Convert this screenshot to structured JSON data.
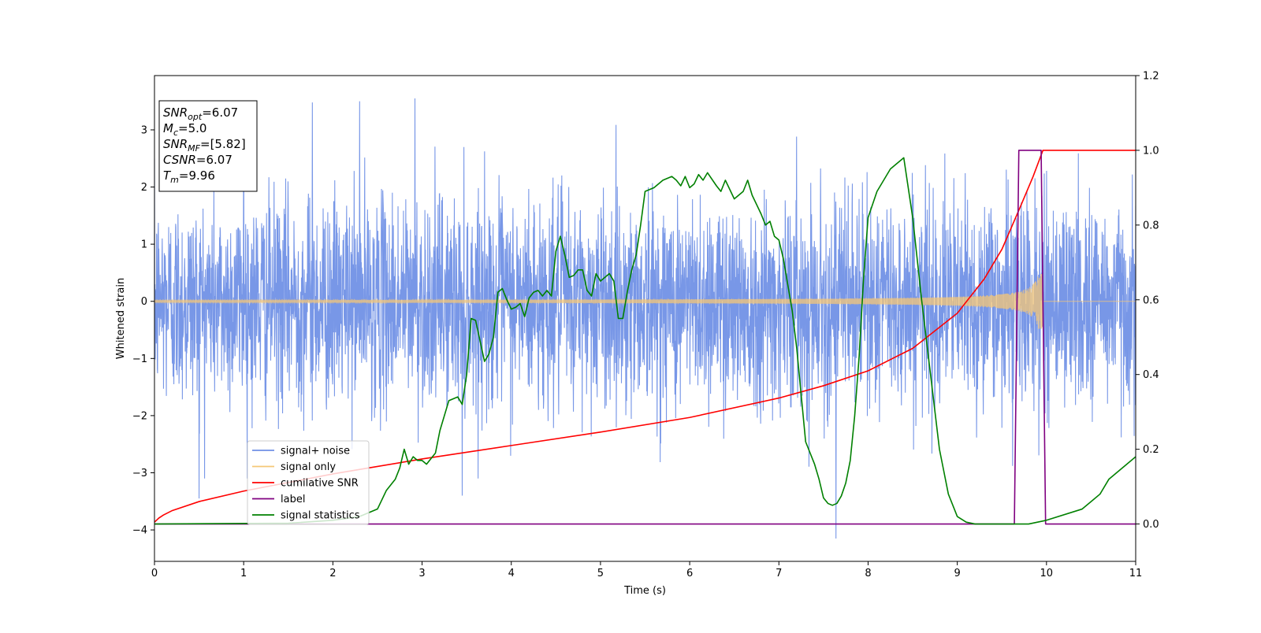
{
  "chart_data": {
    "type": "line",
    "xlabel": "Time (s)",
    "ylabel": "Whitened strain",
    "xlim": [
      0,
      11
    ],
    "ylim_left": [
      -4.55,
      3.95
    ],
    "ylim_right": [
      -0.1,
      1.2
    ],
    "x_ticks": [
      "0",
      "1",
      "2",
      "3",
      "4",
      "5",
      "6",
      "7",
      "8",
      "9",
      "10",
      "11"
    ],
    "y_left_ticks": [
      "−4",
      "−3",
      "−2",
      "−1",
      "0",
      "1",
      "2",
      "3"
    ],
    "y_right_ticks": [
      "0.0",
      "0.2",
      "0.4",
      "0.6",
      "0.8",
      "1.0",
      "1.2"
    ],
    "info_box": [
      {
        "main": "SNR",
        "sub": "opt",
        "rest": "=6.07"
      },
      {
        "main": "M",
        "sub": "c",
        "rest": "=5.0"
      },
      {
        "main": "SNR",
        "sub": "MF",
        "rest": "=[5.82]"
      },
      {
        "main": "CSNR",
        "sub": "",
        "rest": "=6.07"
      },
      {
        "main": "T",
        "sub": "m",
        "rest": "=9.96"
      }
    ],
    "legend": {
      "placement": "lower-left",
      "entries": [
        {
          "label": "signal+ noise",
          "color": "#7191e6"
        },
        {
          "label": "signal only",
          "color": "#f5c777"
        },
        {
          "label": "cumilative SNR",
          "color": "#ff0000"
        },
        {
          "label": "label",
          "color": "#800080"
        },
        {
          "label": "signal statistics",
          "color": "#008000"
        }
      ]
    },
    "series": [
      {
        "name": "signal+ noise",
        "axis": "left",
        "color": "#7191e6",
        "noise_sigma": 0.9,
        "outliers": [
          [
            1.0,
            3.5
          ],
          [
            1.77,
            3.48
          ],
          [
            2.3,
            3.5
          ],
          [
            2.92,
            3.55
          ],
          [
            0.5,
            -3.45
          ],
          [
            3.45,
            -3.4
          ],
          [
            7.64,
            -4.15
          ],
          [
            9.62,
            -2.88
          ]
        ]
      },
      {
        "name": "signal only",
        "axis": "left",
        "color": "#f5c777",
        "chirp_start": 0,
        "merger_time": 9.96,
        "amplitude_start": 0.02,
        "amplitude_peak": 0.48
      },
      {
        "name": "cumilative SNR",
        "axis": "right",
        "color": "#ff0000",
        "x": [
          0,
          0.05,
          0.1,
          0.2,
          0.5,
          1,
          2,
          3,
          4,
          5,
          6,
          7,
          7.5,
          8,
          8.5,
          9,
          9.3,
          9.5,
          9.7,
          9.85,
          9.96,
          10,
          11
        ],
        "y": [
          0.005,
          0.016,
          0.024,
          0.036,
          0.06,
          0.088,
          0.134,
          0.174,
          0.21,
          0.246,
          0.285,
          0.337,
          0.37,
          0.41,
          0.47,
          0.564,
          0.655,
          0.735,
          0.845,
          0.93,
          1.0,
          1.0,
          1.0
        ]
      },
      {
        "name": "label",
        "axis": "right",
        "color": "#800080",
        "x": [
          0,
          9.64,
          9.69,
          9.94,
          9.99,
          11
        ],
        "y": [
          0,
          0,
          1,
          1,
          0,
          0
        ]
      },
      {
        "name": "signal statistics",
        "axis": "right",
        "color": "#008000",
        "x": [
          0,
          1.5,
          2.0,
          2.3,
          2.5,
          2.6,
          2.7,
          2.75,
          2.8,
          2.85,
          2.9,
          2.95,
          3.0,
          3.05,
          3.1,
          3.15,
          3.2,
          3.3,
          3.4,
          3.45,
          3.5,
          3.55,
          3.6,
          3.7,
          3.75,
          3.8,
          3.85,
          3.9,
          3.95,
          4.0,
          4.05,
          4.1,
          4.15,
          4.2,
          4.25,
          4.3,
          4.35,
          4.4,
          4.45,
          4.5,
          4.55,
          4.6,
          4.65,
          4.7,
          4.75,
          4.8,
          4.85,
          4.9,
          4.95,
          5.0,
          5.05,
          5.1,
          5.15,
          5.2,
          5.25,
          5.3,
          5.35,
          5.4,
          5.45,
          5.5,
          5.6,
          5.7,
          5.8,
          5.85,
          5.9,
          5.95,
          6.0,
          6.05,
          6.1,
          6.15,
          6.2,
          6.3,
          6.35,
          6.4,
          6.5,
          6.6,
          6.65,
          6.7,
          6.8,
          6.85,
          6.9,
          6.95,
          7.0,
          7.05,
          7.1,
          7.15,
          7.2,
          7.3,
          7.4,
          7.45,
          7.5,
          7.55,
          7.6,
          7.65,
          7.7,
          7.75,
          7.8,
          7.85,
          7.9,
          7.95,
          8.0,
          8.1,
          8.2,
          8.25,
          8.3,
          8.35,
          8.4,
          8.5,
          8.6,
          8.7,
          8.8,
          8.9,
          9.0,
          9.1,
          9.2,
          9.3,
          9.4,
          9.5,
          9.6,
          9.8,
          10.0,
          10.4,
          10.6,
          10.7,
          10.8,
          10.9,
          11.0
        ],
        "y": [
          0,
          0.002,
          0.01,
          0.02,
          0.04,
          0.09,
          0.12,
          0.15,
          0.2,
          0.16,
          0.18,
          0.17,
          0.17,
          0.16,
          0.175,
          0.19,
          0.25,
          0.33,
          0.34,
          0.32,
          0.4,
          0.55,
          0.545,
          0.435,
          0.455,
          0.5,
          0.62,
          0.63,
          0.6,
          0.575,
          0.58,
          0.59,
          0.555,
          0.605,
          0.62,
          0.625,
          0.61,
          0.625,
          0.61,
          0.73,
          0.77,
          0.72,
          0.66,
          0.665,
          0.68,
          0.68,
          0.625,
          0.61,
          0.67,
          0.65,
          0.66,
          0.67,
          0.65,
          0.55,
          0.55,
          0.62,
          0.68,
          0.72,
          0.8,
          0.89,
          0.9,
          0.92,
          0.93,
          0.92,
          0.905,
          0.93,
          0.9,
          0.91,
          0.935,
          0.92,
          0.94,
          0.905,
          0.89,
          0.92,
          0.87,
          0.89,
          0.92,
          0.88,
          0.83,
          0.8,
          0.81,
          0.77,
          0.76,
          0.71,
          0.64,
          0.57,
          0.47,
          0.22,
          0.16,
          0.12,
          0.07,
          0.055,
          0.05,
          0.055,
          0.075,
          0.11,
          0.17,
          0.29,
          0.45,
          0.66,
          0.82,
          0.89,
          0.93,
          0.95,
          0.96,
          0.97,
          0.98,
          0.82,
          0.6,
          0.4,
          0.2,
          0.08,
          0.02,
          0.005,
          0,
          0,
          0,
          0,
          0,
          0,
          0.01,
          0.04,
          0.08,
          0.12,
          0.14,
          0.16,
          0.18
        ]
      }
    ]
  }
}
